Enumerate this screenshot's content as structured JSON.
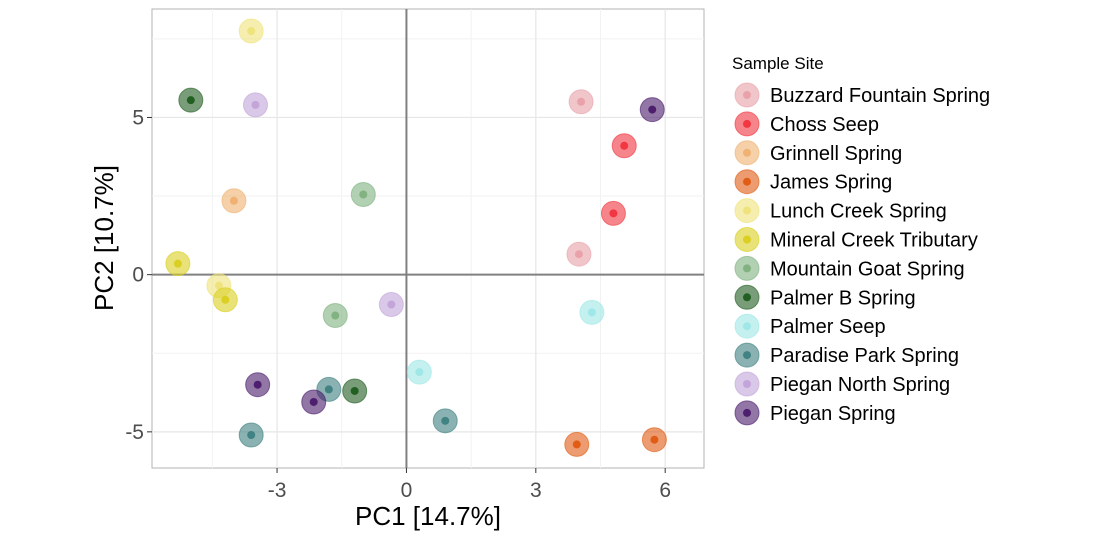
{
  "chart_data": {
    "type": "scatter",
    "xlabel": "PC1   [14.7%]",
    "ylabel": "PC2   [10.7%]",
    "xlim": [
      -5.9,
      6.9
    ],
    "ylim": [
      -6.15,
      8.45
    ],
    "xticks": [
      -3,
      0,
      3,
      6
    ],
    "xtick_labels": [
      "-3",
      "0",
      "3",
      "6"
    ],
    "yticks": [
      -5,
      0,
      5
    ],
    "ytick_labels": [
      "-5",
      "0",
      "5"
    ],
    "grid": true,
    "reference_lines": {
      "x": 0,
      "y": 0
    },
    "legend": {
      "title": "Sample Site",
      "position": "right"
    },
    "series": [
      {
        "name": "Buzzard Fountain Spring",
        "color": "#E8A0A8",
        "points": [
          {
            "x": 4.05,
            "y": 5.5
          },
          {
            "x": 4.0,
            "y": 0.65
          }
        ]
      },
      {
        "name": "Choss Seep",
        "color": "#F0333D",
        "points": [
          {
            "x": 5.05,
            "y": 4.1
          },
          {
            "x": 4.8,
            "y": 1.95
          }
        ]
      },
      {
        "name": "Grinnell Spring",
        "color": "#EFB070",
        "points": [
          {
            "x": -4.0,
            "y": 2.35
          }
        ]
      },
      {
        "name": "James Spring",
        "color": "#E05A10",
        "points": [
          {
            "x": 3.95,
            "y": -5.4
          },
          {
            "x": 5.75,
            "y": -5.25
          }
        ]
      },
      {
        "name": "Lunch Creek Spring",
        "color": "#EEE27A",
        "points": [
          {
            "x": -3.6,
            "y": 7.75
          },
          {
            "x": -4.35,
            "y": -0.35
          }
        ]
      },
      {
        "name": "Mineral Creek Tributary",
        "color": "#D9CE1E",
        "points": [
          {
            "x": -5.3,
            "y": 0.35
          },
          {
            "x": -4.2,
            "y": -0.8
          }
        ]
      },
      {
        "name": "Mountain Goat Spring",
        "color": "#7FB07F",
        "points": [
          {
            "x": -1.0,
            "y": 2.55
          },
          {
            "x": -1.65,
            "y": -1.3
          }
        ]
      },
      {
        "name": "Palmer B Spring",
        "color": "#1E5C1E",
        "points": [
          {
            "x": -5.0,
            "y": 5.55
          },
          {
            "x": -1.2,
            "y": -3.7
          }
        ]
      },
      {
        "name": "Palmer Seep",
        "color": "#9EE6E6",
        "points": [
          {
            "x": 4.3,
            "y": -1.2
          },
          {
            "x": 0.3,
            "y": -3.1
          }
        ]
      },
      {
        "name": "Paradise Park Spring",
        "color": "#3D7F7F",
        "points": [
          {
            "x": -1.8,
            "y": -3.65
          },
          {
            "x": 0.9,
            "y": -4.65
          },
          {
            "x": -3.6,
            "y": -5.1
          }
        ]
      },
      {
        "name": "Piegan North Spring",
        "color": "#C2A3D8",
        "points": [
          {
            "x": -3.5,
            "y": 5.4
          },
          {
            "x": -0.35,
            "y": -0.95
          }
        ]
      },
      {
        "name": "Piegan Spring",
        "color": "#4A1A6A",
        "points": [
          {
            "x": 5.7,
            "y": 5.25
          },
          {
            "x": -3.45,
            "y": -3.5
          },
          {
            "x": -2.15,
            "y": -4.05
          }
        ]
      }
    ]
  }
}
